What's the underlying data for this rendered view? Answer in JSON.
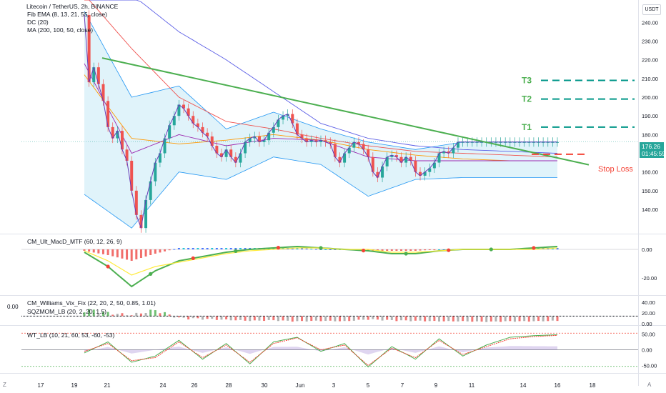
{
  "header": {
    "title": "Litecoin / TetherUS, 2h, BINANCE",
    "indicators": [
      "Fib EMA (8, 13, 21, 55, close)",
      "DC (20)",
      "MA (200, 100, 50, close)"
    ],
    "currency": "USDT"
  },
  "panes": {
    "macd": "CM_Ult_MacD_MTF (60, 12, 26, 9)",
    "vix": "CM_Williams_Vix_Fix (22, 20, 2, 50, 0.85, 1.01)",
    "sqz": "SQZMOM_LB (20, 2, 20, 1.5)",
    "wt": "WT_LB (10, 21, 60, 53, -60, -53)",
    "vix_left_value": "0.00"
  },
  "last_price": {
    "value": "176.26",
    "countdown": "01:45:59"
  },
  "annotations": {
    "t3": "T3",
    "t2": "T2",
    "t1": "T1",
    "stop": "Stop Loss"
  },
  "colors": {
    "green_trend": "#4caf50",
    "target_dash": "#009688",
    "stop": "#f44336",
    "dc_fill": "#e0f3fa",
    "dc_line": "#2196f3",
    "ma200": "#5b5ee6",
    "ma100": "#ef5350",
    "up": "#26a69a",
    "down": "#ef5350"
  },
  "footer": {
    "left_icon": "Z",
    "right_icon": "A"
  },
  "chart_data": [
    {
      "type": "line",
      "pane": "price",
      "y_axis_ticks": [
        140,
        150,
        160,
        170,
        180,
        190,
        200,
        210,
        220,
        230,
        240
      ],
      "y_axis_labels": [
        "140.00",
        "150.00",
        "160.00",
        "170.00",
        "180.00",
        "190.00",
        "200.00",
        "210.00",
        "220.00",
        "230.00",
        "240.00"
      ],
      "x_axis_labels": [
        "17",
        "19",
        "21",
        "24",
        "26",
        "28",
        "30",
        "Jun",
        "3",
        "5",
        "7",
        "9",
        "11",
        "14",
        "16",
        "18"
      ],
      "ylim": [
        127,
        252
      ],
      "series": [
        {
          "kind": "close_price",
          "x": [
            0,
            1,
            2,
            3,
            4,
            5,
            6,
            7,
            8,
            9,
            10,
            11,
            12,
            13,
            14,
            15,
            16,
            17,
            18,
            19,
            20,
            21,
            22,
            23,
            24,
            25,
            26,
            27,
            28,
            29,
            30,
            31,
            32,
            33,
            34,
            35,
            36,
            37,
            38,
            39,
            40,
            41,
            42,
            43,
            44,
            45,
            46,
            47,
            48,
            49,
            50,
            51,
            52,
            53,
            54,
            55,
            56,
            57,
            58,
            59,
            60,
            61,
            62,
            63,
            64,
            65,
            66,
            67,
            68,
            69,
            70,
            71,
            72,
            73,
            74,
            75,
            76,
            77,
            78,
            79,
            80,
            81,
            82,
            83,
            84,
            85,
            86,
            87,
            88,
            89,
            90,
            91,
            92,
            93,
            94,
            95,
            96,
            97,
            98,
            99,
            100
          ],
          "values": [
            244,
            208,
            216,
            207,
            198,
            184,
            178,
            182,
            172,
            166,
            150,
            137,
            130,
            145,
            155,
            165,
            170,
            178,
            185,
            190,
            196,
            194,
            190,
            186,
            184,
            181,
            179,
            174,
            170,
            168,
            172,
            168,
            165,
            170,
            176,
            178,
            179,
            176,
            177,
            181,
            184,
            188,
            190,
            191,
            186,
            180,
            178,
            176,
            177,
            176,
            177,
            176,
            175,
            168,
            165,
            170,
            173,
            176,
            175,
            172,
            168,
            160,
            157,
            163,
            168,
            169,
            168,
            165,
            168,
            166,
            160,
            158,
            160,
            162,
            165,
            170,
            171,
            170,
            173,
            176,
            176,
            176,
            176,
            176,
            176,
            176,
            176,
            176,
            176,
            176,
            176,
            176,
            176,
            176,
            176,
            176,
            176,
            176,
            176,
            176,
            176
          ]
        },
        {
          "kind": "donchian_upper",
          "x": [
            0,
            10,
            20,
            30,
            40,
            50,
            60,
            70,
            80,
            90,
            100
          ],
          "values": [
            246,
            200,
            206,
            183,
            192,
            183,
            176,
            172,
            176,
            176,
            176
          ]
        },
        {
          "kind": "donchian_lower",
          "x": [
            0,
            10,
            20,
            30,
            40,
            50,
            60,
            70,
            80,
            90,
            100
          ],
          "values": [
            148,
            130,
            160,
            156,
            168,
            164,
            147,
            156,
            157,
            157,
            157
          ]
        },
        {
          "kind": "ma200",
          "x": [
            0,
            10,
            20,
            30,
            40,
            50,
            60,
            70,
            80,
            90,
            100
          ],
          "values": [
            270,
            255,
            235,
            220,
            203,
            186,
            178,
            174,
            172,
            171,
            170
          ]
        },
        {
          "kind": "ma100",
          "x": [
            0,
            10,
            20,
            30,
            40,
            50,
            60,
            70,
            80,
            90,
            100
          ],
          "values": [
            255,
            226,
            200,
            187,
            183,
            178,
            174,
            171,
            170,
            169,
            168
          ]
        },
        {
          "kind": "ma50",
          "x": [
            0,
            10,
            20,
            30,
            40,
            50,
            60,
            70,
            80,
            90,
            100
          ],
          "values": [
            212,
            178,
            175,
            177,
            180,
            177,
            172,
            169,
            167,
            166,
            166
          ]
        },
        {
          "kind": "ema55",
          "x": [
            0,
            10,
            20,
            30,
            40,
            50,
            60,
            70,
            80,
            90,
            100
          ],
          "values": [
            218,
            170,
            180,
            174,
            178,
            177,
            168,
            166,
            166,
            166,
            166
          ]
        }
      ],
      "trendline": {
        "start": [
          0,
          221
        ],
        "end": [
          100,
          165
        ]
      },
      "targets": {
        "T3": 209,
        "T2": 199,
        "T1": 184,
        "Stop Loss": 169.5
      },
      "last": 176.26
    },
    {
      "type": "line",
      "pane": "CM_Ult_MacD_MTF",
      "y_axis_labels": [
        "0.00",
        "-20.00"
      ],
      "ylim": [
        -30,
        6
      ],
      "series": [
        {
          "name": "macd",
          "x": [
            0,
            5,
            10,
            15,
            20,
            25,
            30,
            35,
            40,
            45,
            50,
            55,
            60,
            65,
            70,
            75,
            80,
            85,
            90,
            95,
            100
          ],
          "values": [
            -2,
            -12,
            -26,
            -15,
            -8,
            -5,
            -2,
            0,
            1,
            2,
            1,
            0,
            -1,
            -3,
            -3,
            -1,
            0,
            0,
            0,
            1,
            2
          ]
        },
        {
          "name": "signal",
          "x": [
            0,
            5,
            10,
            15,
            20,
            25,
            30,
            35,
            40,
            45,
            50,
            55,
            60,
            65,
            70,
            75,
            80,
            85,
            90,
            95,
            100
          ],
          "values": [
            -1,
            -8,
            -18,
            -12,
            -9,
            -6,
            -3,
            -1,
            0,
            1,
            1,
            0,
            0,
            -2,
            -2,
            -1,
            0,
            0,
            0,
            0,
            1
          ]
        }
      ]
    },
    {
      "type": "bar",
      "pane": "Williams_Vix_Fix_SQZMOM",
      "y_axis_labels": [
        "40.00",
        "20.00",
        "0.00"
      ],
      "ylim": [
        0,
        45
      ],
      "series": [
        {
          "name": "vix",
          "x": [
            0,
            5,
            10,
            15,
            20,
            25,
            30,
            35,
            40,
            45,
            50,
            55,
            60,
            65,
            70,
            75,
            80,
            85,
            90,
            95,
            100
          ],
          "values": [
            30,
            22,
            18,
            28,
            12,
            10,
            8,
            6,
            7,
            5,
            6,
            5,
            9,
            7,
            6,
            5,
            5,
            4,
            5,
            5,
            6
          ]
        }
      ]
    },
    {
      "type": "line",
      "pane": "WT_LB",
      "y_axis_labels": [
        "50.00",
        "0.00",
        "-50.00"
      ],
      "ylim": [
        -65,
        65
      ],
      "series": [
        {
          "name": "wt1",
          "x": [
            0,
            5,
            10,
            15,
            20,
            25,
            30,
            35,
            40,
            45,
            50,
            55,
            60,
            65,
            70,
            75,
            80,
            85,
            90,
            95,
            100
          ],
          "values": [
            -10,
            25,
            -40,
            -20,
            30,
            -30,
            20,
            -45,
            25,
            40,
            -5,
            20,
            -55,
            10,
            -30,
            35,
            -20,
            15,
            40,
            45,
            48
          ]
        },
        {
          "name": "wt2",
          "x": [
            0,
            5,
            10,
            15,
            20,
            25,
            30,
            35,
            40,
            45,
            50,
            55,
            60,
            65,
            70,
            75,
            80,
            85,
            90,
            95,
            100
          ],
          "values": [
            -5,
            20,
            -35,
            -25,
            25,
            -25,
            15,
            -40,
            20,
            38,
            0,
            15,
            -50,
            5,
            -25,
            30,
            -15,
            10,
            35,
            42,
            46
          ]
        }
      ],
      "levels": [
        53,
        0,
        -53
      ]
    }
  ]
}
